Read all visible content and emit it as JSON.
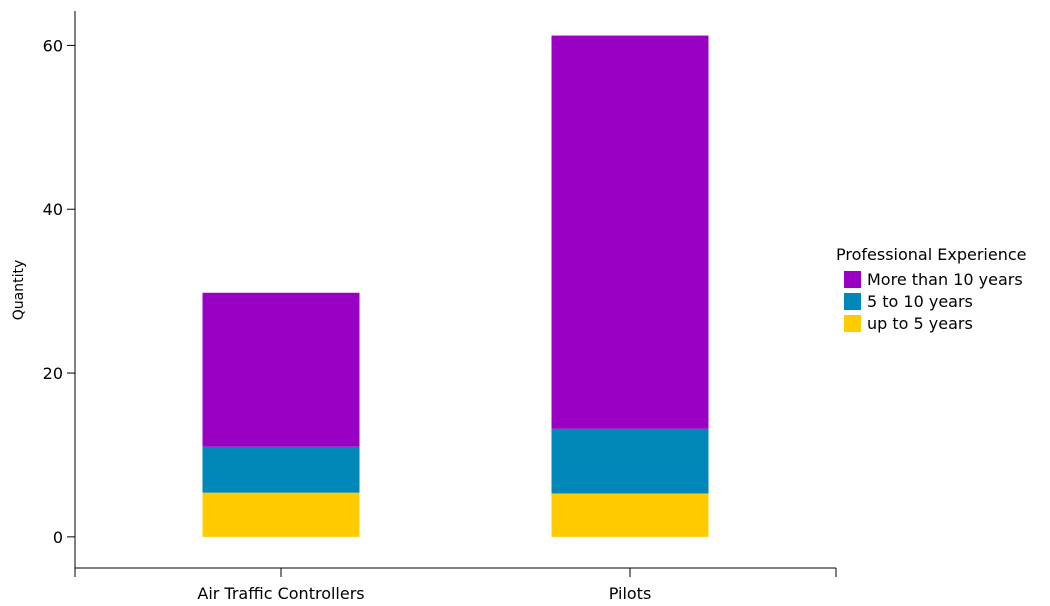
{
  "chart_data": {
    "type": "bar",
    "stacked": true,
    "categories": [
      "Air Traffic Controllers",
      "Pilots"
    ],
    "series": [
      {
        "name": "up to 5 years",
        "values": [
          5.4,
          5.3
        ],
        "color": "#ffcc00"
      },
      {
        "name": "5 to 10 years",
        "values": [
          5.6,
          7.9
        ],
        "color": "#0088b8"
      },
      {
        "name": "More than 10 years",
        "values": [
          18.8,
          48.0
        ],
        "color": "#9900c4"
      }
    ],
    "title": "",
    "xlabel": "",
    "ylabel": "Quantity",
    "ylim": [
      -3.8,
      64.2
    ],
    "yticks": [
      0,
      20,
      40,
      60
    ],
    "grid": false,
    "legend": {
      "title": "Professional Experience",
      "placement": "right",
      "order": [
        "More than 10 years",
        "5 to 10 years",
        "up to 5 years"
      ]
    }
  }
}
